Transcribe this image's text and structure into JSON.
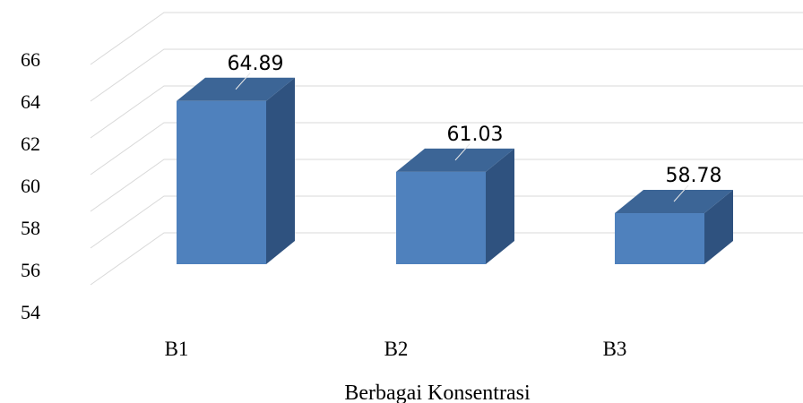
{
  "chart_data": {
    "type": "bar",
    "categories": [
      "B1",
      "B2",
      "B3"
    ],
    "values": [
      64.89,
      61.03,
      58.78
    ],
    "xlabel": "Berbagai Konsentrasi",
    "ylabel": "",
    "ylim": [
      54,
      66
    ],
    "yticks": [
      "54",
      "56",
      "58",
      "60",
      "62",
      "64",
      "66"
    ],
    "data_labels": [
      "64.89",
      "61.03",
      "58.78"
    ],
    "grid": true,
    "style": "3d-column",
    "colors": {
      "front": "#4f81bd",
      "side": "#2f527f",
      "top": "#3c6596",
      "grid": "#d9d9d9"
    }
  }
}
